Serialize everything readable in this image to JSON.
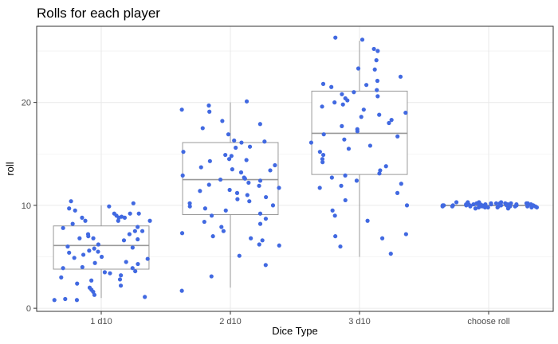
{
  "chart_data": {
    "type": "box+scatter",
    "title": "Rolls for each player",
    "xlabel": "Dice Type",
    "ylabel": "roll",
    "categories": [
      "1 d10",
      "2 d10",
      "3 d10",
      "choose roll"
    ],
    "ylim": [
      -0.3,
      27.4
    ],
    "yticks": [
      0,
      10,
      20
    ],
    "grid": true,
    "colors": {
      "points": "#4169e1",
      "box": "#999999",
      "grid": "#ebebeb",
      "panel_border": "#333333"
    },
    "boxplots": [
      {
        "category": "1 d10",
        "min": 1,
        "q1": 3.8,
        "median": 6.1,
        "q3": 8.0,
        "max": 10
      },
      {
        "category": "2 d10",
        "min": 2,
        "q1": 9.1,
        "median": 12.5,
        "q3": 16.1,
        "max": 20
      },
      {
        "category": "3 d10",
        "min": 5,
        "q1": 13.0,
        "median": 17.0,
        "q3": 21.1,
        "max": 26
      },
      {
        "category": "choose roll",
        "min": 10,
        "q1": 10,
        "median": 10,
        "q3": 10,
        "max": 10
      }
    ],
    "points": [
      {
        "category": "1 d10",
        "values": [
          9,
          8.8,
          9.2,
          8.5,
          8.8,
          8.5,
          9.7,
          9.2,
          8.9,
          10.2,
          8.8,
          8.5,
          9.2,
          10.4,
          9.9,
          9.5,
          8.2,
          7.2,
          6.7,
          7.5,
          7.8,
          6.2,
          6.6,
          7.2,
          6.8,
          7.0,
          7.5,
          7.9,
          6.8,
          5.8,
          5.9,
          5.4,
          6.0,
          5.2,
          5.6,
          5.0,
          4.8,
          5.5,
          4.5,
          4.9,
          4.4,
          4.3,
          3.9,
          4.0,
          3.5,
          3.6,
          3.2,
          3.9,
          3.4,
          3.0,
          2.8,
          2.7,
          2.2,
          2.4,
          2.0,
          1.8,
          1.6,
          1.1,
          1.3,
          0.8,
          0.8,
          0.9
        ]
      },
      {
        "category": "2 d10",
        "values": [
          20.1,
          19.3,
          19.1,
          19.7,
          18.2,
          17.5,
          17.9,
          16.9,
          16.3,
          16.2,
          16.1,
          15.7,
          15.2,
          15.6,
          14.9,
          14.8,
          14.4,
          14.3,
          14.5,
          13.9,
          13.7,
          13.5,
          13.4,
          13.2,
          12.9,
          12.7,
          12.6,
          12.5,
          12.4,
          12.2,
          12.0,
          11.9,
          11.7,
          11.5,
          11.4,
          11.2,
          11.0,
          10.8,
          10.6,
          10.4,
          10.2,
          10.0,
          9.9,
          9.7,
          9.5,
          9.2,
          9.0,
          8.7,
          8.4,
          8.2,
          7.9,
          7.5,
          7.3,
          7.0,
          6.8,
          6.6,
          6.2,
          6.1,
          5.1,
          4.2,
          3.1,
          1.7
        ]
      },
      {
        "category": "3 d10",
        "values": [
          26.3,
          26.1,
          25.2,
          25.0,
          24.1,
          23.3,
          23.2,
          22.5,
          22.1,
          21.8,
          21.7,
          21.5,
          21.2,
          21.0,
          20.8,
          20.6,
          20.4,
          20.2,
          20.0,
          19.8,
          19.6,
          19.3,
          19.0,
          18.8,
          18.6,
          18.3,
          18.0,
          17.7,
          17.4,
          17.2,
          16.9,
          16.7,
          16.4,
          16.1,
          15.8,
          15.5,
          15.2,
          14.9,
          14.5,
          14.2,
          13.8,
          13.4,
          13.1,
          12.9,
          12.7,
          12.4,
          12.1,
          11.9,
          11.7,
          11.2,
          10.5,
          10.0,
          9.5,
          9.0,
          8.5,
          7.2,
          7.0,
          6.8,
          6.0,
          5.3
        ]
      },
      {
        "category": "choose roll",
        "values": [
          10.3,
          10.2,
          10.2,
          10.1,
          10.1,
          10.0,
          10.0,
          10.0,
          9.9,
          9.9,
          9.9,
          9.8,
          9.8,
          9.7,
          9.7,
          10.3,
          10.2,
          10.1,
          10.0,
          9.9,
          9.8,
          9.9,
          10.0,
          10.1,
          10.2,
          10.3,
          10.2,
          10.1,
          10.0,
          9.9,
          9.8,
          9.8,
          9.9,
          10.0,
          10.1,
          10.2,
          10.3,
          10.2,
          10.1,
          10.0,
          9.9,
          9.8,
          10.0,
          10.1,
          10.2,
          9.9,
          10.0,
          10.1,
          9.9,
          10.0
        ]
      }
    ]
  }
}
